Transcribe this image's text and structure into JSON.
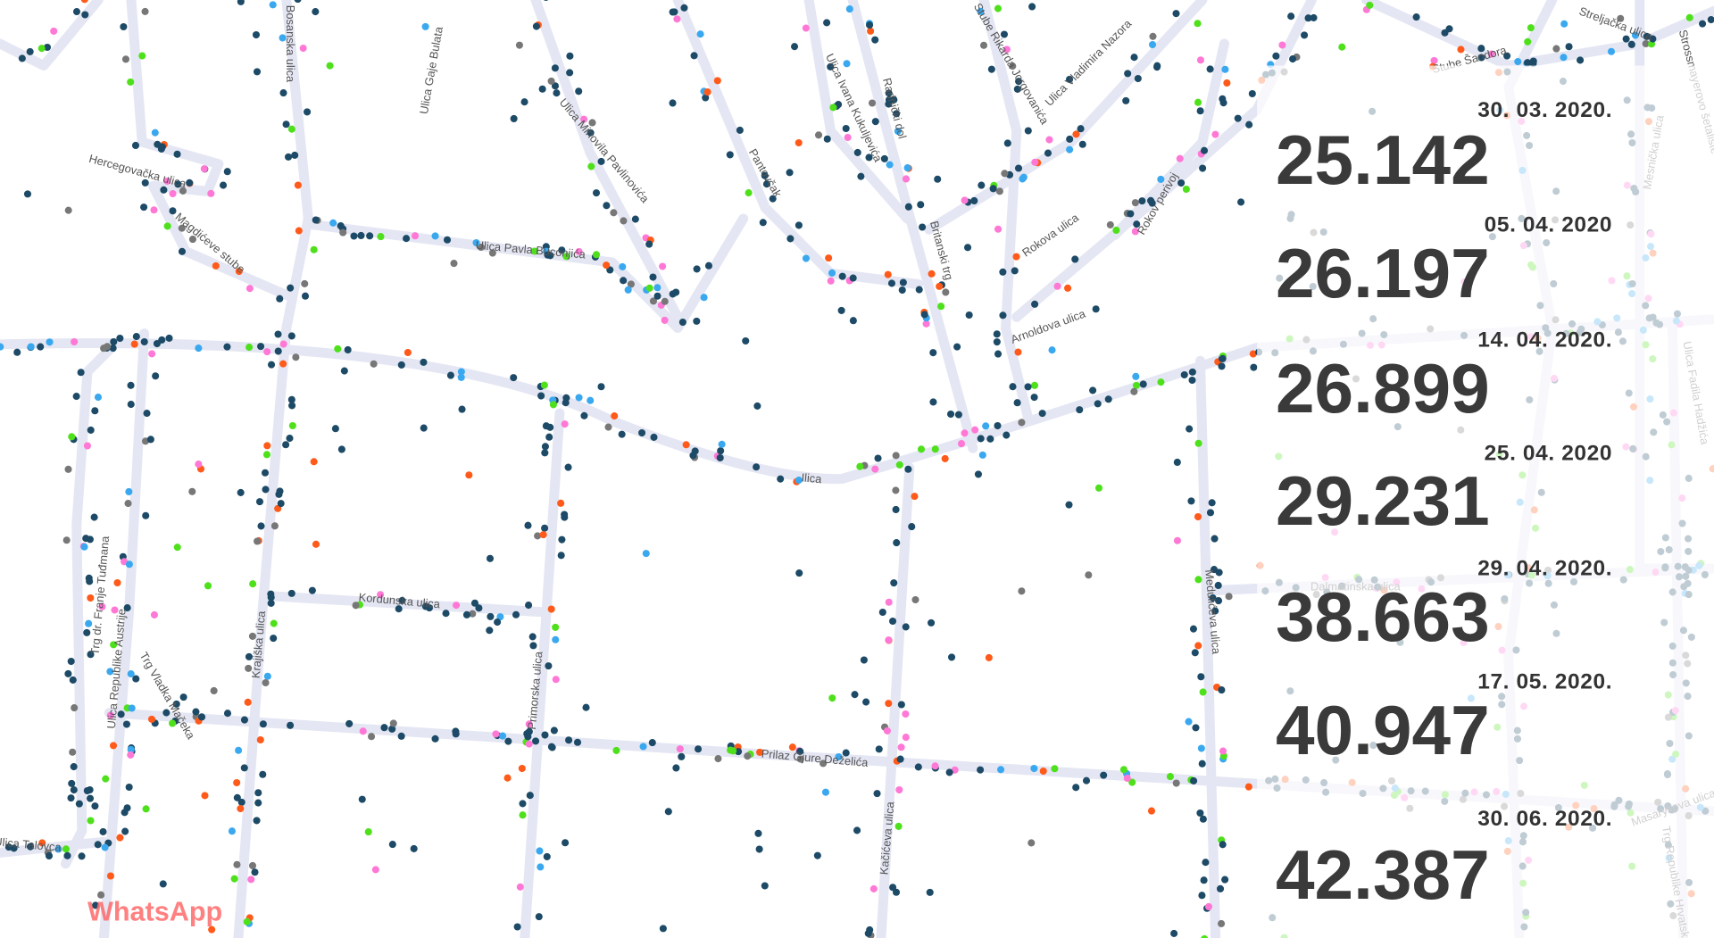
{
  "streets": [
    "Bosanska ulica",
    "Ulica Gaje Bulata",
    "Hercegovačka ulica",
    "Magdićeve stube",
    "Ulica Mihovila Pavlinovića",
    "Ulica Ivana Kukuljevića",
    "Radnički dol",
    "Pantovčak",
    "Stube Rikarda Jorgovanića",
    "Ulica Vladimira Nazora",
    "Britanski trg",
    "Rokova ulica",
    "Rokov perivoj",
    "Arnoldova ulica",
    "Ulica Pavla Buconjića",
    "Ilica",
    "Kordunska ulica",
    "Krajiška ulica",
    "Primorska ulica",
    "Trg dr. Franje Tuđmana",
    "Ulica Republike Austrije",
    "Trg Vladka Mačeka",
    "Prilaz Gjure Deželića",
    "Kačićeva ulica",
    "Medulićeva ulica",
    "Stube Šandora",
    "Streljačka ulica",
    "Strossmayerovo šetalište",
    "Mesnička ulica",
    "Ulica Fadila Hadžića",
    "Dalmatinska ulica",
    "Masarykova ulica",
    "Trg Republike Hrvatske",
    "Ulica Talovca"
  ],
  "stats": [
    {
      "date": "30. 03. 2020.",
      "count": "25.142"
    },
    {
      "date": "05. 04. 2020",
      "count": "26.197"
    },
    {
      "date": "14. 04. 2020.",
      "count": "26.899"
    },
    {
      "date": "25. 04. 2020",
      "count": "29.231"
    },
    {
      "date": "29. 04. 2020.",
      "count": "38.663"
    },
    {
      "date": "17. 05. 2020.",
      "count": "40.947"
    },
    {
      "date": "30. 06. 2020.",
      "count": "42.387"
    }
  ],
  "watermark": "WhatsApp"
}
